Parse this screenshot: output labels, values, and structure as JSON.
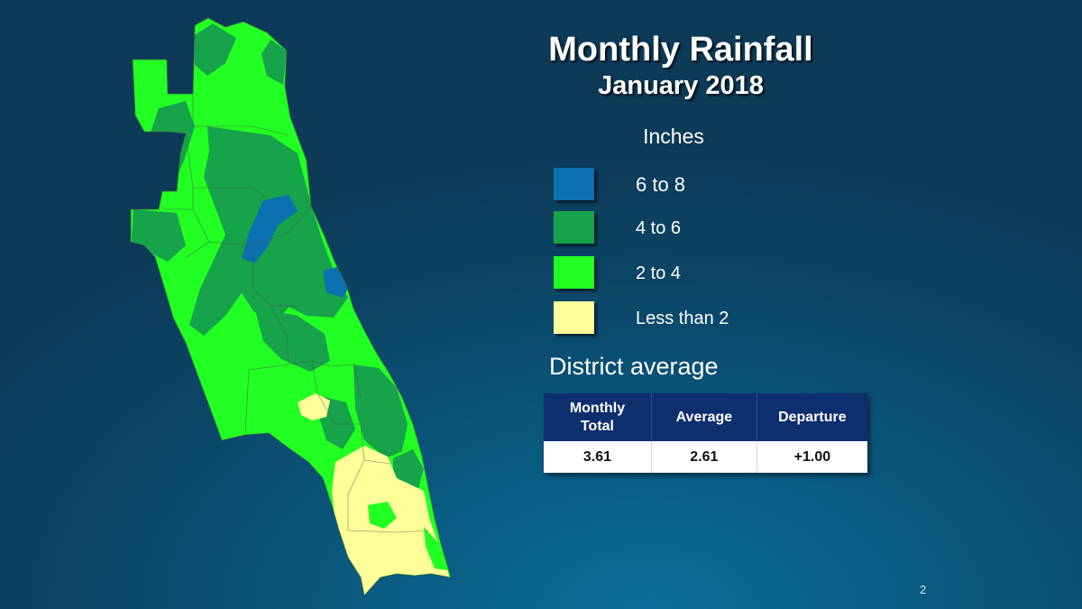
{
  "title": "Monthly Rainfall",
  "subtitle": "January 2018",
  "legend": {
    "units": "Inches",
    "items": [
      {
        "label": "6 to 8",
        "color": "#0b70b0"
      },
      {
        "label": "4 to 6",
        "color": "#16a34a"
      },
      {
        "label": "2 to 4",
        "color": "#22ff22"
      },
      {
        "label": "Less than 2",
        "color": "#ffff99"
      }
    ]
  },
  "district_average": {
    "heading": "District average",
    "columns": [
      "Monthly Total",
      "Average",
      "Departure"
    ],
    "values": [
      "3.61",
      "2.61",
      "+1.00"
    ]
  },
  "map": {
    "region_colors": {
      "6 to 8": "#0b70b0",
      "4 to 6": "#16a34a",
      "2 to 4": "#22ff22",
      "less_than_2": "#ffff99"
    }
  },
  "page_number": "2"
}
